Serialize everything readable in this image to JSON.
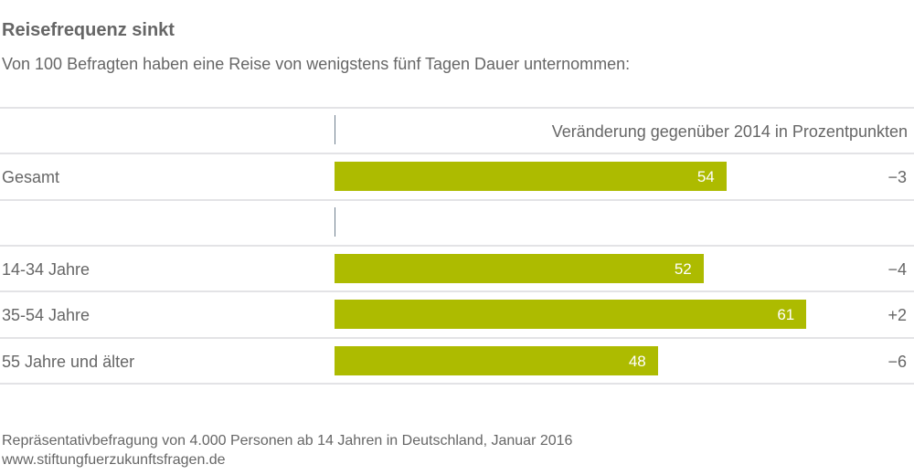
{
  "header": {
    "title": "Reisefrequenz sinkt",
    "subtitle": "Von 100 Befragten haben eine Reise von wenigstens fünf Tagen Dauer unternommen:",
    "change_column_label": "Veränderung gegenüber 2014 in Prozentpunkten"
  },
  "colors": {
    "bar": "#adbb00",
    "text": "#666666",
    "bar_label": "#ffffff"
  },
  "chart_data": {
    "type": "bar",
    "orientation": "horizontal",
    "title": "Reisefrequenz sinkt",
    "subtitle": "Von 100 Befragten haben eine Reise von wenigstens fünf Tagen Dauer unternommen:",
    "categories": [
      "Gesamt",
      "14-34 Jahre",
      "35-54 Jahre",
      "55 Jahre und älter"
    ],
    "values": [
      54,
      52,
      61,
      48
    ],
    "value_labels": [
      "54",
      "52",
      "61",
      "48"
    ],
    "change_label": "Veränderung gegenüber 2014 in Prozentpunkten",
    "changes": [
      "−3",
      "−4",
      "+2",
      "−6"
    ],
    "xlim": [
      19.7,
      62
    ],
    "grid": false,
    "legend": "none"
  },
  "footer": {
    "source": "Repräsentativbefragung von 4.000 Personen ab 14 Jahren in Deutschland, Januar 2016",
    "url": "www.stiftungfuerzukunftsfragen.de"
  }
}
